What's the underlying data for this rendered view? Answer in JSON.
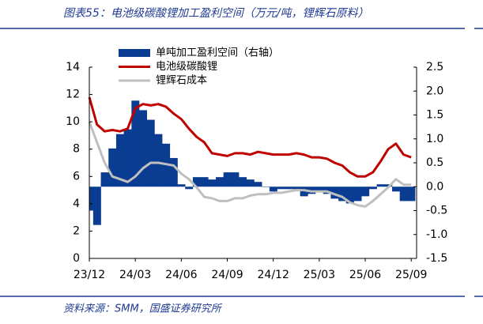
{
  "chart_data": {
    "type": "line",
    "title": "图表55：电池级碳酸锂加工盈利空间（万元/吨，锂辉石原料）",
    "source": "资料来源：SMM，国盛证券研究所",
    "categories": [
      "23/12",
      null,
      null,
      null,
      null,
      null,
      "24/03",
      null,
      null,
      null,
      null,
      null,
      "24/06",
      null,
      null,
      null,
      null,
      null,
      "24/09",
      null,
      null,
      null,
      null,
      null,
      "24/12",
      null,
      null,
      null,
      null,
      null,
      "25/03",
      null,
      null,
      null,
      null,
      null,
      "25/06",
      null,
      null,
      null,
      null,
      null,
      "25/09"
    ],
    "series": [
      {
        "name": "单吨加工盈利空间（右轴）",
        "type": "bar",
        "axis": "y2",
        "color": "#0a3d91",
        "values": [
          -0.5,
          -0.8,
          0.3,
          0.8,
          1.1,
          1.2,
          1.8,
          1.6,
          1.4,
          1.1,
          0.9,
          0.6,
          0.05,
          -0.05,
          0.2,
          0.2,
          0.15,
          0.2,
          0.3,
          0.3,
          0.2,
          0.15,
          0.1,
          0.0,
          -0.1,
          -0.05,
          -0.05,
          -0.05,
          -0.2,
          -0.15,
          -0.1,
          -0.15,
          -0.25,
          -0.3,
          -0.35,
          -0.3,
          -0.2,
          -0.05,
          0.05,
          0.05,
          -0.1,
          -0.3,
          -0.3
        ]
      },
      {
        "name": "电池级碳酸锂",
        "type": "line",
        "color": "#c00000",
        "values": [
          11.8,
          9.8,
          9.3,
          9.4,
          9.3,
          9.5,
          11.0,
          11.3,
          11.2,
          11.3,
          11.1,
          10.6,
          10.2,
          9.5,
          8.9,
          8.5,
          7.7,
          7.6,
          7.5,
          7.7,
          7.7,
          7.6,
          7.8,
          7.7,
          7.6,
          7.6,
          7.6,
          7.7,
          7.6,
          7.4,
          7.4,
          7.3,
          7.0,
          6.8,
          6.3,
          6.0,
          6.0,
          6.3,
          7.1,
          8.0,
          8.4,
          7.6,
          7.4
        ]
      },
      {
        "name": "锂辉石成本",
        "type": "line",
        "color": "#bfbfbf",
        "values": [
          10.0,
          8.5,
          7.0,
          6.0,
          5.8,
          5.6,
          6.0,
          6.6,
          7.0,
          7.0,
          6.9,
          6.8,
          6.2,
          5.8,
          5.2,
          4.5,
          4.4,
          4.2,
          4.2,
          4.4,
          4.4,
          4.6,
          4.7,
          4.7,
          4.8,
          4.8,
          4.9,
          5.0,
          5.0,
          4.9,
          4.9,
          4.9,
          4.7,
          4.5,
          4.1,
          3.9,
          3.8,
          4.2,
          4.7,
          5.2,
          5.8,
          5.4,
          5.4
        ]
      }
    ],
    "ylim": [
      0,
      14
    ],
    "yticks": [
      0,
      2,
      4,
      6,
      8,
      10,
      12,
      14
    ],
    "y2lim": [
      -1.5,
      2.5
    ],
    "y2ticks": [
      -1.5,
      {
        "value": -1,
        "label": "-1.0"
      },
      -0.5,
      {
        "value": 0,
        "label": "0.0"
      },
      0.5,
      {
        "value": 1,
        "label": "1.0"
      },
      1.5,
      {
        "value": 2,
        "label": "2.0"
      },
      2.5
    ],
    "legend": "upper left"
  }
}
